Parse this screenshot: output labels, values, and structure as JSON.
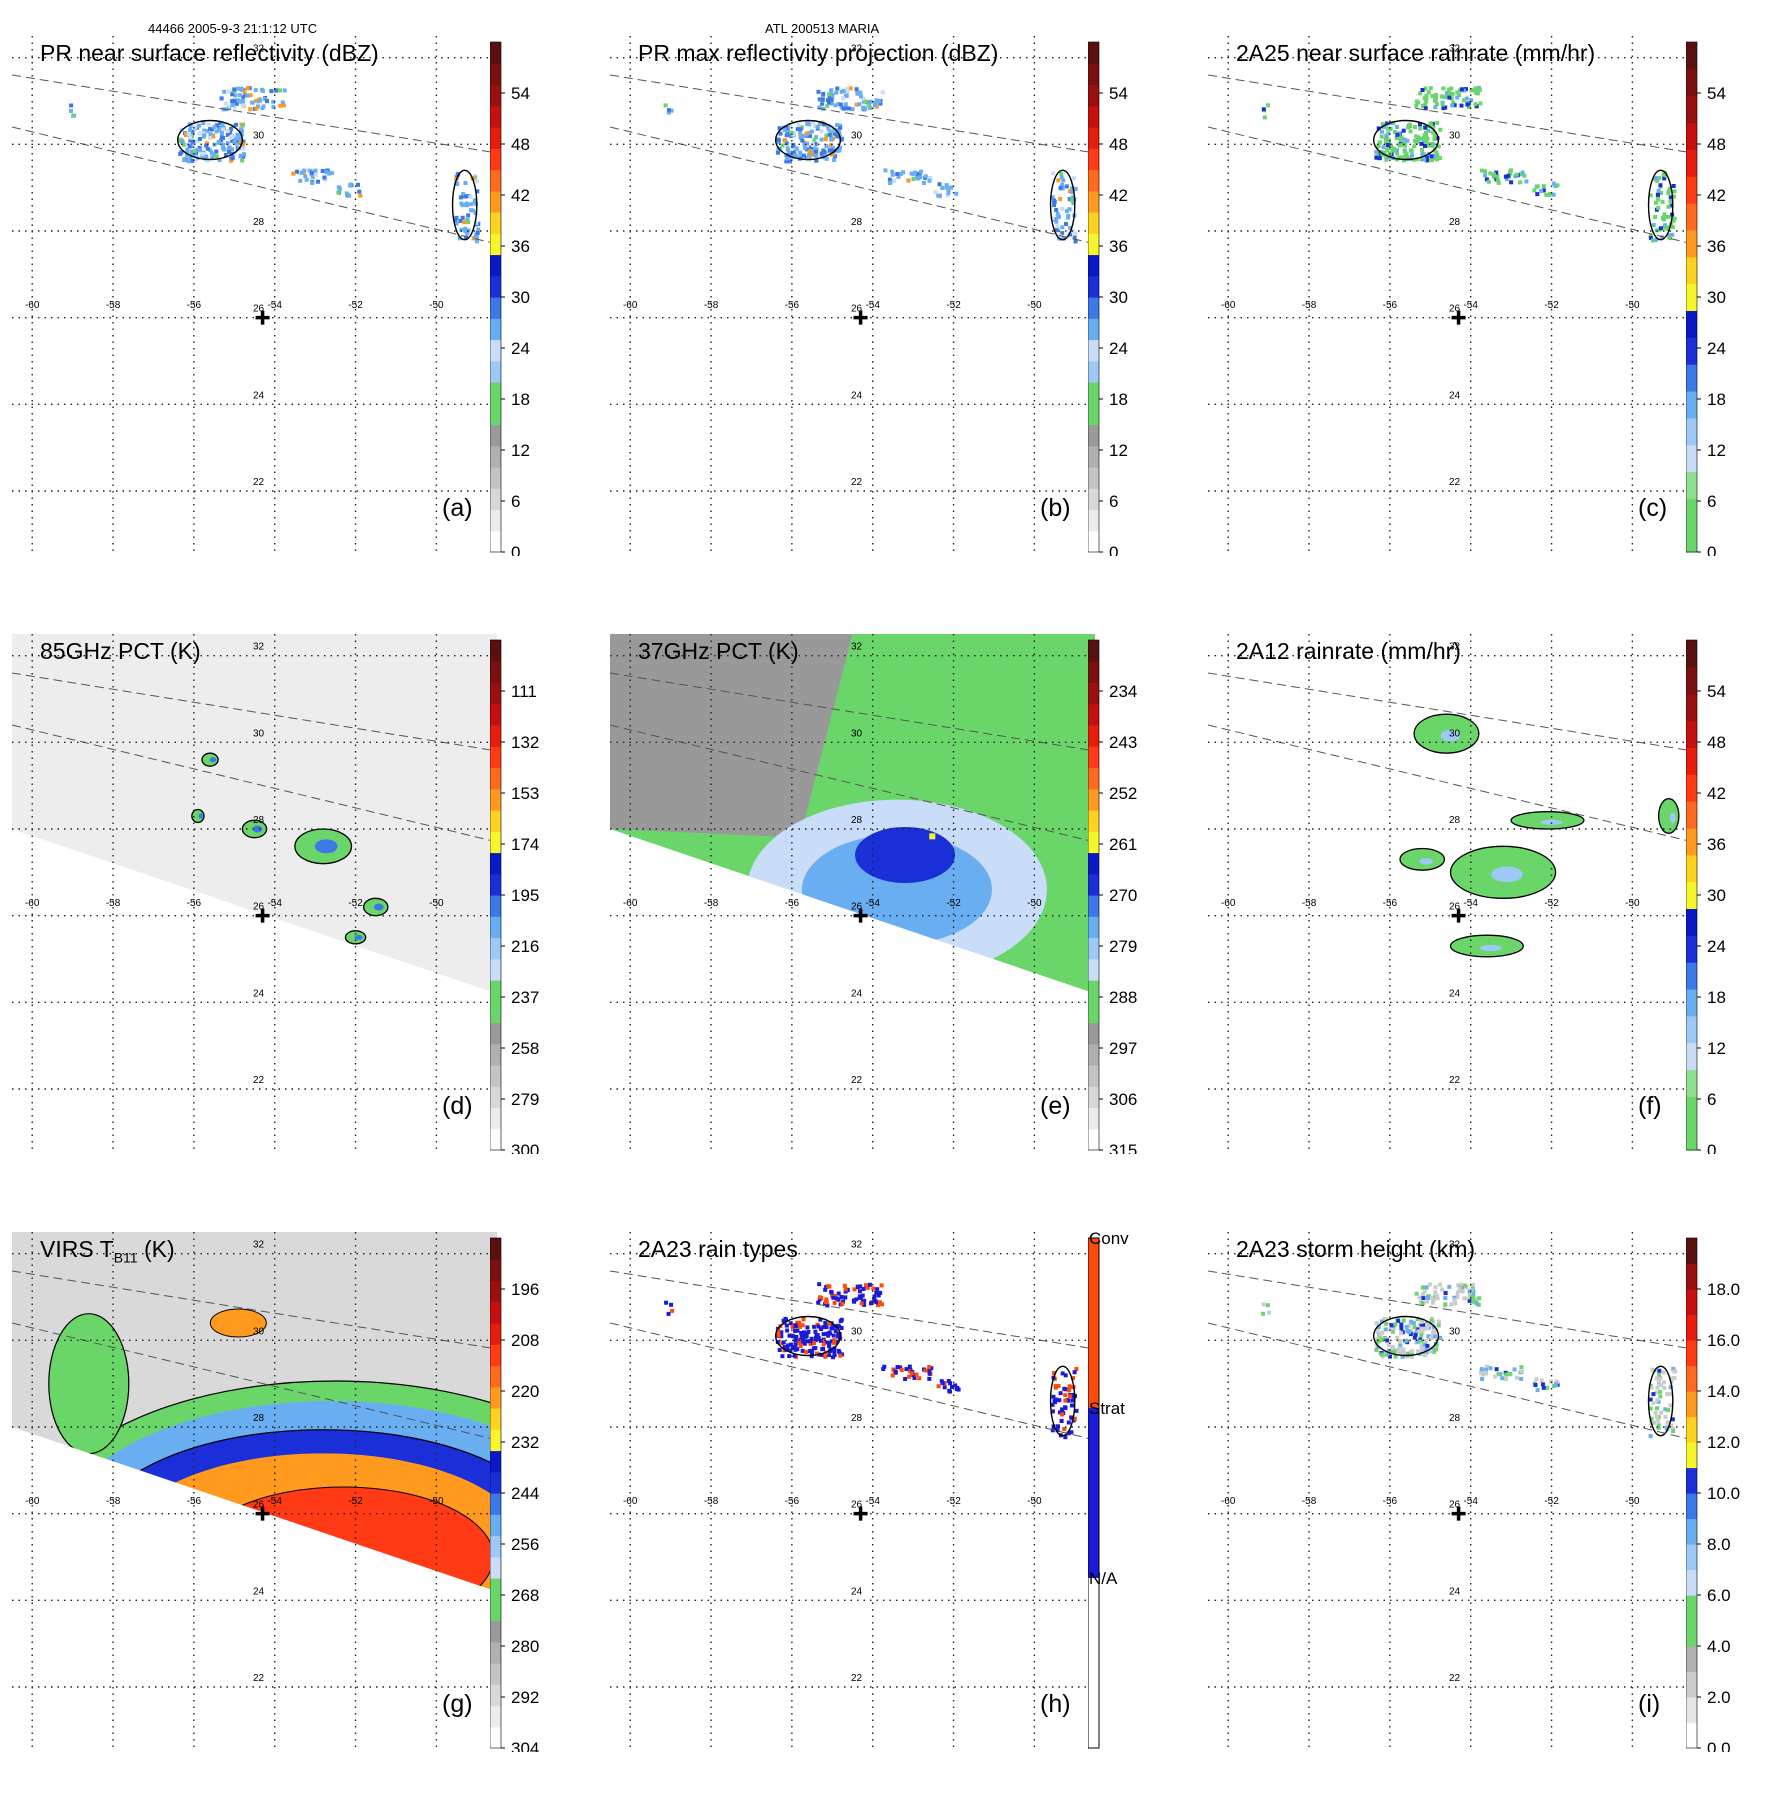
{
  "header": {
    "left": "44466 2005-9-3 21:1:12 UTC",
    "center": "ATL 200513 MARIA"
  },
  "lon_labels": [
    "-60",
    "-58",
    "-56",
    "-54",
    "-52",
    "-50"
  ],
  "lat_labels": [
    "32",
    "30",
    "28",
    "26",
    "24",
    "22"
  ],
  "panels": [
    {
      "id": "a",
      "title": "PR near surface reflectivity (dBZ)",
      "label": "(a)",
      "colorbar": {
        "kind": "dbz",
        "ticks": [
          "0",
          "6",
          "12",
          "18",
          "24",
          "30",
          "36",
          "42",
          "48",
          "54"
        ]
      }
    },
    {
      "id": "b",
      "title": "PR max reflectivity projection (dBZ)",
      "label": "(b)",
      "colorbar": {
        "kind": "dbz",
        "ticks": [
          "0",
          "6",
          "12",
          "18",
          "24",
          "30",
          "36",
          "42",
          "48",
          "54"
        ]
      }
    },
    {
      "id": "c",
      "title": "2A25 near surface rainrate (mm/hr)",
      "label": "(c)",
      "colorbar": {
        "kind": "rain",
        "ticks": [
          "0",
          "6",
          "12",
          "18",
          "24",
          "30",
          "36",
          "42",
          "48",
          "54"
        ]
      }
    },
    {
      "id": "d",
      "title": "85GHz PCT (K)",
      "label": "(d)",
      "colorbar": {
        "kind": "temp",
        "ticks": [
          "300",
          "279",
          "258",
          "237",
          "216",
          "195",
          "174",
          "153",
          "132",
          "111"
        ]
      }
    },
    {
      "id": "e",
      "title": "37GHz PCT (K)",
      "label": "(e)",
      "colorbar": {
        "kind": "temp",
        "ticks": [
          "315",
          "306",
          "297",
          "288",
          "279",
          "270",
          "261",
          "252",
          "243",
          "234"
        ]
      }
    },
    {
      "id": "f",
      "title": "2A12 rainrate (mm/hr)",
      "label": "(f)",
      "colorbar": {
        "kind": "rain",
        "ticks": [
          "0",
          "6",
          "12",
          "18",
          "24",
          "30",
          "36",
          "42",
          "48",
          "54"
        ]
      }
    },
    {
      "id": "g",
      "title": "VIRS T",
      "title_sub": "B11",
      "title_tail": " (K)",
      "label": "(g)",
      "colorbar": {
        "kind": "temp",
        "ticks": [
          "304",
          "292",
          "280",
          "268",
          "256",
          "244",
          "232",
          "220",
          "208",
          "196"
        ]
      }
    },
    {
      "id": "h",
      "title": "2A23 rain types",
      "label": "(h)",
      "colorbar": {
        "kind": "types",
        "ticks": [
          "N/A",
          "Strat",
          "Conv"
        ]
      }
    },
    {
      "id": "i",
      "title": "2A23 storm height (km)",
      "label": "(i)",
      "colorbar": {
        "kind": "height",
        "ticks": [
          "0.0",
          "2.0",
          "4.0",
          "6.0",
          "8.0",
          "10.0",
          "12.0",
          "14.0",
          "16.0",
          "18.0"
        ]
      }
    }
  ],
  "chart_data": {
    "type": "heatmap",
    "storm": "ATL 200513 MARIA",
    "orbit": "44466",
    "time": "2005-9-3 21:1:12 UTC",
    "xlim": [
      -60.5,
      -48.5
    ],
    "ylim": [
      20.5,
      32.5
    ],
    "xticks": [
      -60,
      -58,
      -56,
      -54,
      -52,
      -50
    ],
    "yticks": [
      32,
      30,
      28,
      26,
      24,
      22
    ],
    "storm_center": {
      "lon": -54.3,
      "lat": 26.0
    },
    "colors": {
      "dbz": [
        "#ffffff",
        "#ececec",
        "#d8d8d8",
        "#c4c4c4",
        "#b0b0b0",
        "#9a9a9a",
        "#6ad66a",
        "#6ad66a",
        "#9ec8f5",
        "#c9dcf8",
        "#6aaef2",
        "#3d78e8",
        "#1a2fd8",
        "#0a18c8",
        "#f6f62a",
        "#ffd21f",
        "#ff9a1f",
        "#ff6a1f",
        "#ff3a14",
        "#e81c0c",
        "#c80f0f",
        "#9a1010",
        "#7a1010",
        "#5a1010"
      ],
      "rain": [
        "#6ad66a",
        "#6ad66a",
        "#8ee08e",
        "#c9dcf8",
        "#9ec8f5",
        "#6aaef2",
        "#3d78e8",
        "#1a2fd8",
        "#0a18c8",
        "#f6f62a",
        "#ffd21f",
        "#ff9a1f",
        "#ff6a1f",
        "#ff3a14",
        "#e81c0c",
        "#c80f0f",
        "#9a1010",
        "#7a1010",
        "#5a1010"
      ],
      "temp": [
        "#ffffff",
        "#ececec",
        "#d8d8d8",
        "#c4c4c4",
        "#b0b0b0",
        "#9a9a9a",
        "#6ad66a",
        "#6ad66a",
        "#c9dcf8",
        "#9ec8f5",
        "#6aaef2",
        "#3d78e8",
        "#1a2fd8",
        "#0a18c8",
        "#f6f62a",
        "#ffd21f",
        "#ff9a1f",
        "#ff6a1f",
        "#ff3a14",
        "#e81c0c",
        "#c80f0f",
        "#9a1010",
        "#7a1010",
        "#5a1010"
      ],
      "types": [
        "#ffffff",
        "#1a1ad8",
        "#ff4a0a"
      ],
      "height": [
        "#ffffff",
        "#e6e6e6",
        "#cccccc",
        "#b0b0b0",
        "#6ad66a",
        "#6ad66a",
        "#c9dcf8",
        "#9ec8f5",
        "#6aaef2",
        "#3d78e8",
        "#1a2fd8",
        "#f6f62a",
        "#ffd21f",
        "#ff9a1f",
        "#ff6a1f",
        "#ff3a14",
        "#e81c0c",
        "#c80f0f",
        "#9a1010",
        "#5a1010"
      ]
    }
  }
}
